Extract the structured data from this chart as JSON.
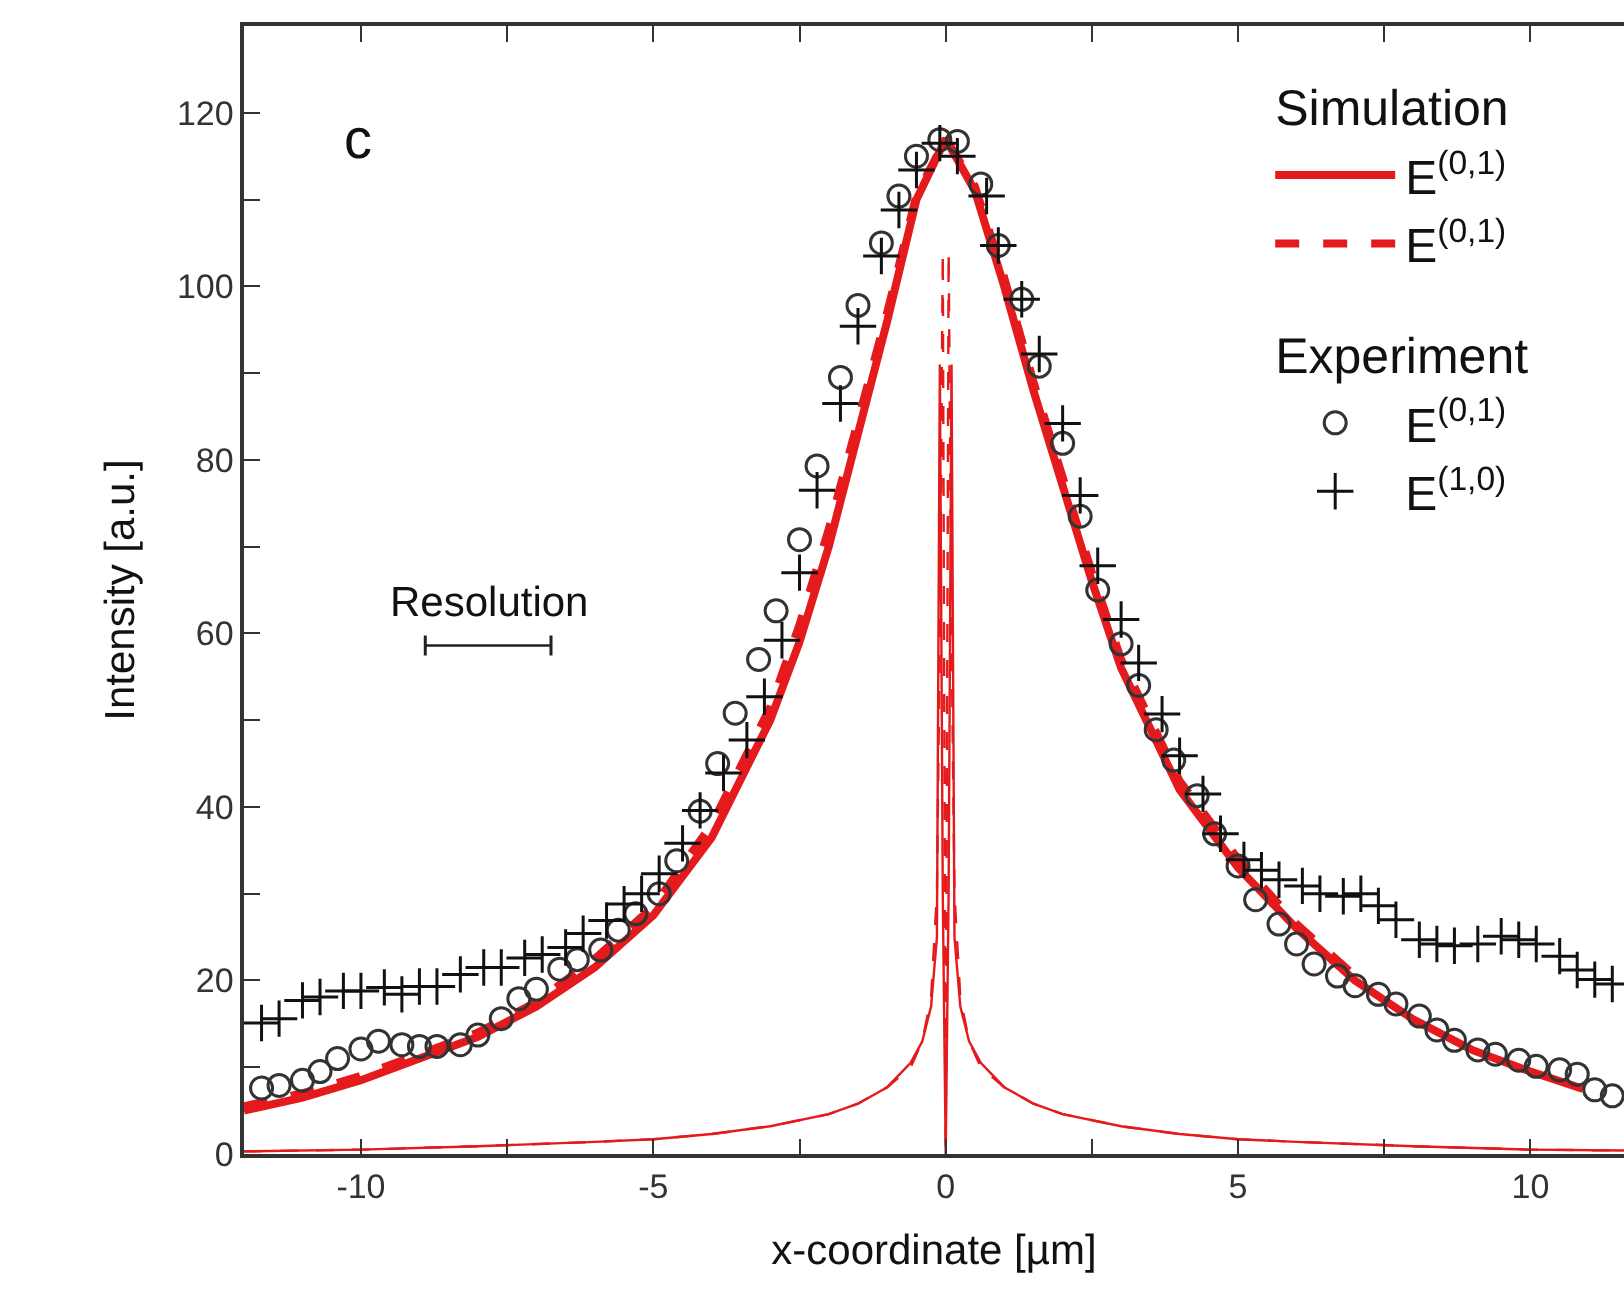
{
  "chart_data": {
    "type": "line",
    "xlabel": "x-coordinate [µm]",
    "ylabel": "Intensity [a.u.]",
    "legend_title": [
      "Simulation",
      "Experiment"
    ],
    "annotations": [
      "c",
      {
        "text": "Resolution",
        "x": -7.8,
        "y": 58.6
      }
    ],
    "xlim": [
      -12,
      11.6
    ],
    "ylim": [
      0,
      130
    ],
    "xticks": [
      -10,
      {
        "value": -7.5,
        "label": null
      },
      -5,
      {
        "value": -2.5,
        "label": null
      },
      0,
      {
        "value": 2.5,
        "label": null
      },
      5,
      {
        "value": 7.5,
        "label": null
      },
      10
    ],
    "yticks": [
      0,
      {
        "value": 10,
        "label": null
      },
      20,
      {
        "value": 30,
        "label": null
      },
      40,
      {
        "value": 50,
        "label": null
      },
      60,
      {
        "value": 70,
        "label": null
      },
      80,
      {
        "value": 90,
        "label": null
      },
      100,
      {
        "value": 110,
        "label": null
      },
      120
    ],
    "legend": "top right",
    "series": [
      {
        "name": "E$^{(0,1)}$",
        "color": "#e41a1c",
        "line_style": "solid",
        "marker": "none",
        "x": [
          -12,
          -11,
          -10,
          -9,
          -8,
          -7,
          -6,
          -5,
          -4,
          -3,
          -2.5,
          -2,
          -1.5,
          -1,
          -0.5,
          0,
          0.5,
          1,
          1.5,
          2,
          2.5,
          3,
          4,
          5,
          6,
          7,
          8,
          9,
          10,
          10.9
        ],
        "values": [
          5,
          6.5,
          8.5,
          11,
          13.5,
          17,
          21.5,
          27.5,
          36.5,
          50,
          59,
          70,
          83,
          96,
          110,
          117,
          111,
          100,
          88,
          77,
          66,
          56,
          42,
          33,
          26,
          20,
          15.5,
          12,
          9.5,
          7.5
        ]
      },
      {
        "name": "E$^{(0,1)}$",
        "color": "#e41a1c",
        "line_style": "dashed",
        "marker": "none",
        "x": [
          -12,
          -11,
          -10,
          -9,
          -8,
          -7,
          -6,
          -5,
          -4,
          -3,
          -2.5,
          -2,
          -1.5,
          -1,
          -0.5,
          0,
          0.5,
          1,
          1.5,
          2,
          2.5,
          3,
          4,
          5,
          6,
          7
        ],
        "values": [
          5.5,
          7,
          9,
          11.5,
          14,
          17.5,
          22.5,
          28.5,
          38,
          51.5,
          61,
          72,
          84.5,
          97,
          110.5,
          117,
          111.5,
          101,
          89,
          78,
          67,
          57,
          43,
          34,
          26.5,
          20.5
        ]
      },
      {
        "color": "#e41a1c",
        "line_style": "solid",
        "marker": "none",
        "x": [
          -12,
          -10,
          -8,
          -6,
          -5,
          -4,
          -3,
          -2,
          -1.5,
          -1,
          -0.6,
          -0.4,
          -0.25,
          -0.15,
          -0.1,
          -0.05,
          0,
          0.05,
          0.1,
          0.15,
          0.25,
          0.4,
          0.6,
          1,
          1.5,
          2,
          3,
          4,
          5,
          6,
          8,
          10,
          11.6
        ],
        "values": [
          0.3,
          0.5,
          0.9,
          1.4,
          1.7,
          2.3,
          3.2,
          4.6,
          5.8,
          7.7,
          10.5,
          13,
          17,
          25,
          91,
          30,
          0,
          30,
          91,
          25,
          17,
          13,
          10.5,
          7.7,
          5.8,
          4.6,
          3.2,
          2.3,
          1.7,
          1.4,
          0.9,
          0.5,
          0.4
        ]
      },
      {
        "color": "#e41a1c",
        "line_style": "dashed",
        "marker": "none",
        "x": [
          -12,
          -10,
          -8,
          -6,
          -5,
          -4,
          -3,
          -2,
          -1.5,
          -1,
          -0.6,
          -0.4,
          -0.25,
          -0.15,
          -0.1,
          -0.05,
          0,
          0.05,
          0.1,
          0.15,
          0.25,
          0.4,
          0.6,
          1,
          1.5,
          2,
          3,
          4,
          5,
          6,
          8,
          10,
          11.6
        ],
        "values": [
          0.3,
          0.5,
          0.9,
          1.4,
          1.7,
          2.3,
          3.2,
          4.6,
          5.8,
          7.7,
          10,
          13,
          18,
          30,
          60,
          104,
          0,
          104,
          60,
          30,
          18,
          13,
          10,
          7.7,
          5.8,
          4.6,
          3.2,
          2.3,
          1.7,
          1.4,
          0.9,
          0.5,
          0.4
        ]
      },
      {
        "name": "E$^{(0,1)}$",
        "type": "scatter",
        "color": "#333333",
        "marker": "circle",
        "x": [
          -11.7,
          -11.4,
          -11.0,
          -10.7,
          -10.4,
          -10.0,
          -9.7,
          -9.3,
          -9.0,
          -8.7,
          -8.3,
          -8.0,
          -7.6,
          -7.3,
          -7.0,
          -6.6,
          -6.3,
          -5.9,
          -5.6,
          -5.3,
          -4.9,
          -4.6,
          -4.2,
          -3.9,
          -3.6,
          -3.2,
          -2.9,
          -2.5,
          -2.2,
          -1.8,
          -1.5,
          -1.1,
          -0.8,
          -0.5,
          -0.1,
          0.2,
          0.6,
          0.9,
          1.3,
          1.6,
          2.0,
          2.3,
          2.6,
          3.0,
          3.3,
          3.6,
          3.9,
          4.3,
          4.6,
          5.0,
          5.3,
          5.7,
          6.0,
          6.3,
          6.7,
          7.0,
          7.4,
          7.7,
          8.1,
          8.4,
          8.7,
          9.1,
          9.4,
          9.8,
          10.1,
          10.5,
          10.8,
          11.1,
          11.4
        ],
        "values": [
          7.6,
          7.9,
          8.5,
          9.5,
          11,
          12.1,
          13,
          12.6,
          12.4,
          12.4,
          12.6,
          13.7,
          15.6,
          17.9,
          19,
          21.3,
          22.4,
          23.5,
          25.8,
          27.7,
          30,
          33.8,
          39.5,
          45,
          50.8,
          57,
          62.6,
          70.8,
          79.3,
          89.5,
          97.8,
          105,
          110.4,
          115,
          116.9,
          116.7,
          111.8,
          104.7,
          98.5,
          90.8,
          81.9,
          73.5,
          65,
          58.8,
          54,
          48.9,
          45.4,
          41.3,
          36.9,
          33.2,
          29.3,
          26.5,
          24.2,
          21.9,
          20.5,
          19.4,
          18.4,
          17.3,
          15.9,
          14.3,
          13.1,
          12,
          11.5,
          10.8,
          10.1,
          9.7,
          9.2,
          7.4,
          6.7
        ]
      },
      {
        "name": "E$^{(1,0)}$",
        "type": "scatter",
        "color": "#111111",
        "marker": "cross",
        "x": [
          -11.7,
          -11.4,
          -11.0,
          -10.7,
          -10.3,
          -10.0,
          -9.6,
          -9.3,
          -9.0,
          -8.7,
          -8.3,
          -7.9,
          -7.6,
          -7.2,
          -6.9,
          -6.5,
          -6.2,
          -5.8,
          -5.5,
          -5.2,
          -4.9,
          -4.5,
          -4.2,
          -3.8,
          -3.4,
          -3.1,
          -2.8,
          -2.5,
          -2.2,
          -1.8,
          -1.5,
          -1.1,
          -0.8,
          -0.5,
          -0.1,
          0.2,
          0.7,
          0.9,
          1.3,
          1.6,
          2.0,
          2.3,
          2.6,
          3.0,
          3.3,
          3.7,
          4.0,
          4.4,
          4.7,
          5.1,
          5.4,
          5.7,
          6.1,
          6.4,
          6.8,
          7.1,
          7.4,
          7.7,
          8.1,
          8.4,
          8.7,
          9.1,
          9.5,
          9.8,
          10.1,
          10.5,
          10.8,
          11.1,
          11.4
        ],
        "values": [
          15.1,
          15.6,
          17.7,
          18.1,
          18.8,
          18.8,
          19.2,
          18.4,
          19.3,
          19.3,
          20.7,
          21.5,
          21.5,
          22.6,
          23,
          23.8,
          25.4,
          26.9,
          28.8,
          30,
          32.3,
          35.8,
          39.6,
          43.9,
          47.7,
          52.7,
          59.2,
          67,
          76.5,
          86.5,
          95.4,
          103.5,
          108.8,
          113.4,
          116.5,
          115,
          110.4,
          104.7,
          98.5,
          92.2,
          84.2,
          75.9,
          67.8,
          61.6,
          56.6,
          50.7,
          45.9,
          41.5,
          36.9,
          33.9,
          32.7,
          31.6,
          30.9,
          30,
          29.7,
          30,
          28.6,
          27,
          24.7,
          24.2,
          24,
          24.2,
          25.1,
          24.7,
          24.2,
          22.8,
          21.2,
          20.1,
          19.6
        ]
      },
      {
        "color": "#222222",
        "line_style": "solid",
        "marker": "none",
        "x": [
          -8.9,
          -6.75
        ],
        "values": [
          58.6,
          58.6
        ],
        "xerrors": [
          0,
          0
        ]
      }
    ]
  }
}
